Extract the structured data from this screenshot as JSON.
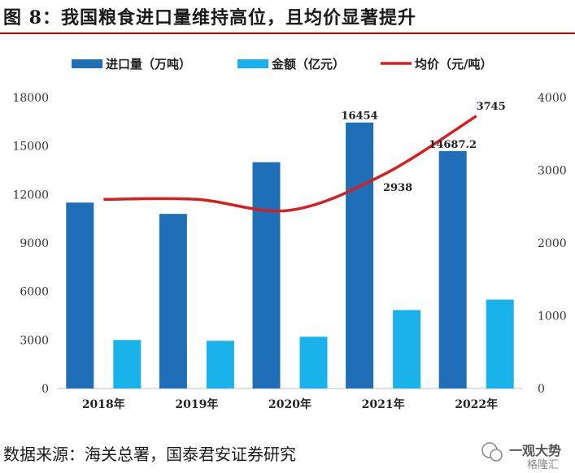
{
  "figure_title": "图 8：我国粮食进口量维持高位，且均价显著提升",
  "source_text": "数据来源：海关总署，国泰君安证券研究",
  "watermark": {
    "line1": "一观大势",
    "line2": "格隆汇"
  },
  "colors": {
    "volume": "#1f6fb8",
    "amount": "#19b2ea",
    "price": "#d42020",
    "title_rule": "#c00000"
  },
  "chart_data": {
    "type": "bar",
    "categories": [
      "2018年",
      "2019年",
      "2020年",
      "2021年",
      "2022年"
    ],
    "series": [
      {
        "name": "进口量（万吨）",
        "type": "bar",
        "axis": "left",
        "values": [
          11500,
          10800,
          14000,
          16454,
          14687.2
        ],
        "color": "#1f6fb8"
      },
      {
        "name": "金额（亿元）",
        "type": "bar",
        "axis": "left",
        "values": [
          3000,
          2950,
          3200,
          4850,
          5500
        ],
        "color": "#19b2ea"
      },
      {
        "name": "均价（元/吨）",
        "type": "line",
        "axis": "right",
        "values": [
          2600,
          2600,
          2450,
          2938,
          3745
        ],
        "color": "#d42020"
      }
    ],
    "data_labels": [
      {
        "series": 0,
        "index": 3,
        "text": "16454"
      },
      {
        "series": 0,
        "index": 4,
        "text": "14687.2"
      },
      {
        "series": 2,
        "index": 3,
        "text": "2938"
      },
      {
        "series": 2,
        "index": 4,
        "text": "3745"
      }
    ],
    "y_left": {
      "ticks": [
        0,
        3000,
        6000,
        9000,
        12000,
        15000,
        18000
      ],
      "lim": [
        0,
        18000
      ]
    },
    "y_right": {
      "ticks": [
        0,
        1000,
        2000,
        3000,
        4000
      ],
      "lim": [
        0,
        4000
      ]
    },
    "legend_position": "top",
    "grid": false
  }
}
